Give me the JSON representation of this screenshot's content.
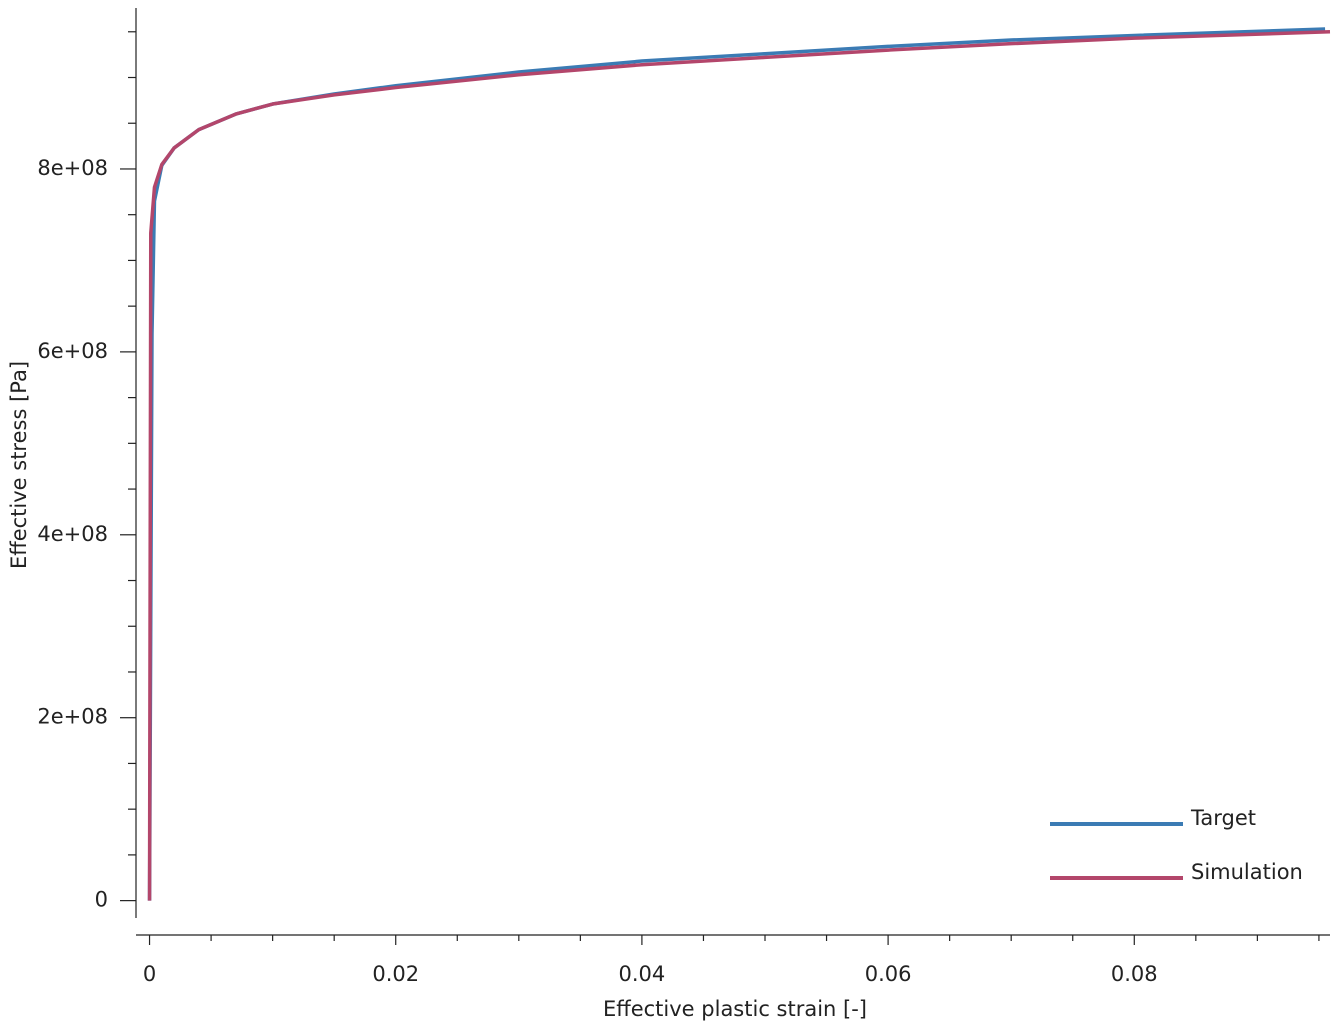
{
  "chart_data": {
    "type": "line",
    "xlabel": "Effective plastic strain [-]",
    "ylabel": "Effective stress [Pa]",
    "xlim": [
      -0.0011,
      0.0959
    ],
    "ylim": [
      -19000000,
      976000000
    ],
    "xticks": [
      0,
      0.02,
      0.04,
      0.06,
      0.08
    ],
    "yticks": [
      0,
      {
        "value": 200000000,
        "label": "2e+08"
      },
      {
        "value": 400000000,
        "label": "4e+08"
      },
      {
        "value": 600000000,
        "label": "6e+08"
      },
      {
        "value": 800000000,
        "label": "8e+08"
      }
    ],
    "xminor": [
      0.005,
      0.01,
      0.015,
      0.025,
      0.03,
      0.035,
      0.045,
      0.05,
      0.055,
      0.065,
      0.07,
      0.075,
      0.085,
      0.09,
      0.095
    ],
    "yminor": [
      50000000,
      100000000,
      150000000,
      250000000,
      300000000,
      350000000,
      450000000,
      500000000,
      550000000,
      650000000,
      700000000,
      750000000,
      850000000,
      900000000,
      950000000
    ],
    "legend": "lower right",
    "series": [
      {
        "name": "Target",
        "color": "#3b7bb4",
        "x": [
          0,
          0.0002,
          0.0004,
          0.001,
          0.002,
          0.004,
          0.007,
          0.01,
          0.015,
          0.02,
          0.03,
          0.04,
          0.05,
          0.06,
          0.07,
          0.08,
          0.0955
        ],
        "values": [
          0,
          620000000,
          765000000,
          804000000,
          823000000,
          843000000,
          860000000,
          871000000,
          882000000,
          891000000,
          906000000,
          918000000,
          926000000,
          934000000,
          941000000,
          946000000,
          953000000
        ]
      },
      {
        "name": "Simulation",
        "color": "#b3466b",
        "x": [
          0,
          0.0001,
          0.0004,
          0.001,
          0.002,
          0.004,
          0.007,
          0.01,
          0.015,
          0.02,
          0.03,
          0.04,
          0.05,
          0.06,
          0.07,
          0.08,
          0.0959
        ],
        "values": [
          0,
          730000000,
          780000000,
          805000000,
          823000000,
          843000000,
          860000000,
          871000000,
          881000000,
          889000000,
          903000000,
          914000000,
          922000000,
          930000000,
          937000000,
          943000000,
          950000000
        ]
      }
    ]
  }
}
